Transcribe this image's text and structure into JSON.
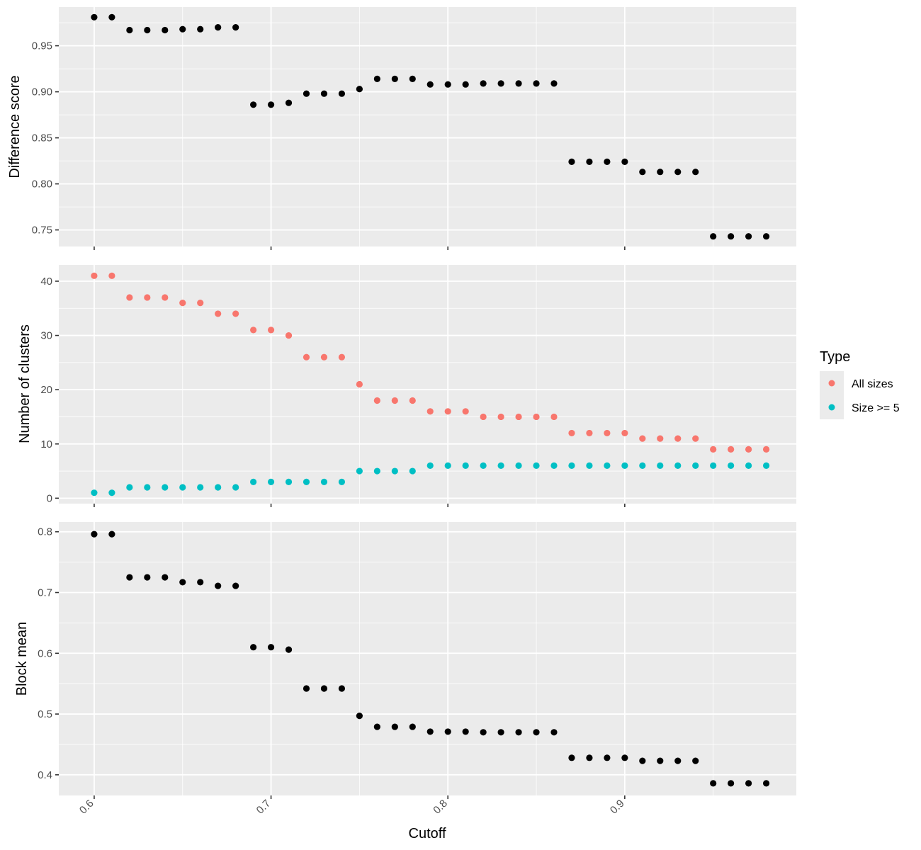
{
  "figure": {
    "xlabel": "Cutoff",
    "x_ticks": [
      0.6,
      0.7,
      0.8,
      0.9
    ],
    "x_tick_labels": [
      "0.6",
      "0.7",
      "0.8",
      "0.9"
    ]
  },
  "legend": {
    "title": "Type",
    "items": [
      {
        "label": "All sizes",
        "color": "#F8766D"
      },
      {
        "label": "Size >= 5",
        "color": "#00BFC4"
      }
    ]
  },
  "colors": {
    "panel_bg": "#EBEBEB",
    "grid": "#FFFFFF",
    "point": "#000000"
  },
  "chart_data": [
    {
      "type": "scatter",
      "title": "",
      "xlabel": "Cutoff",
      "ylabel": "Difference score",
      "xlim": [
        0.58,
        0.997
      ],
      "ylim": [
        0.732,
        0.992
      ],
      "y_ticks": [
        0.75,
        0.8,
        0.85,
        0.9,
        0.95
      ],
      "y_tick_labels": [
        "0.75",
        "0.80",
        "0.85",
        "0.90",
        "0.95"
      ],
      "grid": true,
      "series": [
        {
          "color": "#000000",
          "x": [
            0.6,
            0.61,
            0.62,
            0.63,
            0.64,
            0.65,
            0.66,
            0.67,
            0.68,
            0.69,
            0.7,
            0.71,
            0.72,
            0.73,
            0.74,
            0.75,
            0.76,
            0.77,
            0.78,
            0.79,
            0.8,
            0.81,
            0.82,
            0.83,
            0.84,
            0.85,
            0.86,
            0.87,
            0.88,
            0.89,
            0.9,
            0.91,
            0.92,
            0.93,
            0.94,
            0.95,
            0.96,
            0.97,
            0.98
          ],
          "y": [
            0.981,
            0.981,
            0.967,
            0.967,
            0.967,
            0.968,
            0.968,
            0.97,
            0.97,
            0.886,
            0.886,
            0.888,
            0.898,
            0.898,
            0.898,
            0.903,
            0.914,
            0.914,
            0.914,
            0.908,
            0.908,
            0.908,
            0.909,
            0.909,
            0.909,
            0.909,
            0.909,
            0.824,
            0.824,
            0.824,
            0.824,
            0.813,
            0.813,
            0.813,
            0.813,
            0.743,
            0.743,
            0.743,
            0.743
          ]
        }
      ]
    },
    {
      "type": "scatter",
      "title": "",
      "xlabel": "Cutoff",
      "ylabel": "Number of clusters",
      "xlim": [
        0.58,
        0.997
      ],
      "ylim": [
        -1.0,
        43.0
      ],
      "y_ticks": [
        0,
        10,
        20,
        30,
        40
      ],
      "y_tick_labels": [
        "0",
        "10",
        "20",
        "30",
        "40"
      ],
      "grid": true,
      "legend_position": "right",
      "series": [
        {
          "name": "All sizes",
          "color": "#F8766D",
          "x": [
            0.6,
            0.61,
            0.62,
            0.63,
            0.64,
            0.65,
            0.66,
            0.67,
            0.68,
            0.69,
            0.7,
            0.71,
            0.72,
            0.73,
            0.74,
            0.75,
            0.76,
            0.77,
            0.78,
            0.79,
            0.8,
            0.81,
            0.82,
            0.83,
            0.84,
            0.85,
            0.86,
            0.87,
            0.88,
            0.89,
            0.9,
            0.91,
            0.92,
            0.93,
            0.94,
            0.95,
            0.96,
            0.97,
            0.98
          ],
          "y": [
            41,
            41,
            37,
            37,
            37,
            36,
            36,
            34,
            34,
            31,
            31,
            30,
            26,
            26,
            26,
            21,
            18,
            18,
            18,
            16,
            16,
            16,
            15,
            15,
            15,
            15,
            15,
            12,
            12,
            12,
            12,
            11,
            11,
            11,
            11,
            9,
            9,
            9,
            9
          ]
        },
        {
          "name": "Size >= 5",
          "color": "#00BFC4",
          "x": [
            0.6,
            0.61,
            0.62,
            0.63,
            0.64,
            0.65,
            0.66,
            0.67,
            0.68,
            0.69,
            0.7,
            0.71,
            0.72,
            0.73,
            0.74,
            0.75,
            0.76,
            0.77,
            0.78,
            0.79,
            0.8,
            0.81,
            0.82,
            0.83,
            0.84,
            0.85,
            0.86,
            0.87,
            0.88,
            0.89,
            0.9,
            0.91,
            0.92,
            0.93,
            0.94,
            0.95,
            0.96,
            0.97,
            0.98
          ],
          "y": [
            1,
            1,
            2,
            2,
            2,
            2,
            2,
            2,
            2,
            3,
            3,
            3,
            3,
            3,
            3,
            5,
            5,
            5,
            5,
            6,
            6,
            6,
            6,
            6,
            6,
            6,
            6,
            6,
            6,
            6,
            6,
            6,
            6,
            6,
            6,
            6,
            6,
            6,
            6
          ]
        }
      ]
    },
    {
      "type": "scatter",
      "title": "",
      "xlabel": "Cutoff",
      "ylabel": "Block mean",
      "xlim": [
        0.58,
        0.997
      ],
      "ylim": [
        0.366,
        0.816
      ],
      "y_ticks": [
        0.4,
        0.5,
        0.6,
        0.7,
        0.8
      ],
      "y_tick_labels": [
        "0.4",
        "0.5",
        "0.6",
        "0.7",
        "0.8"
      ],
      "grid": true,
      "series": [
        {
          "color": "#000000",
          "x": [
            0.6,
            0.61,
            0.62,
            0.63,
            0.64,
            0.65,
            0.66,
            0.67,
            0.68,
            0.69,
            0.7,
            0.71,
            0.72,
            0.73,
            0.74,
            0.75,
            0.76,
            0.77,
            0.78,
            0.79,
            0.8,
            0.81,
            0.82,
            0.83,
            0.84,
            0.85,
            0.86,
            0.87,
            0.88,
            0.89,
            0.9,
            0.91,
            0.92,
            0.93,
            0.94,
            0.95,
            0.96,
            0.97,
            0.98
          ],
          "y": [
            0.796,
            0.796,
            0.725,
            0.725,
            0.725,
            0.717,
            0.717,
            0.711,
            0.711,
            0.61,
            0.61,
            0.606,
            0.542,
            0.542,
            0.542,
            0.497,
            0.479,
            0.479,
            0.479,
            0.471,
            0.471,
            0.471,
            0.47,
            0.47,
            0.47,
            0.47,
            0.47,
            0.428,
            0.428,
            0.428,
            0.428,
            0.423,
            0.423,
            0.423,
            0.423,
            0.386,
            0.386,
            0.386,
            0.386
          ]
        }
      ]
    }
  ]
}
